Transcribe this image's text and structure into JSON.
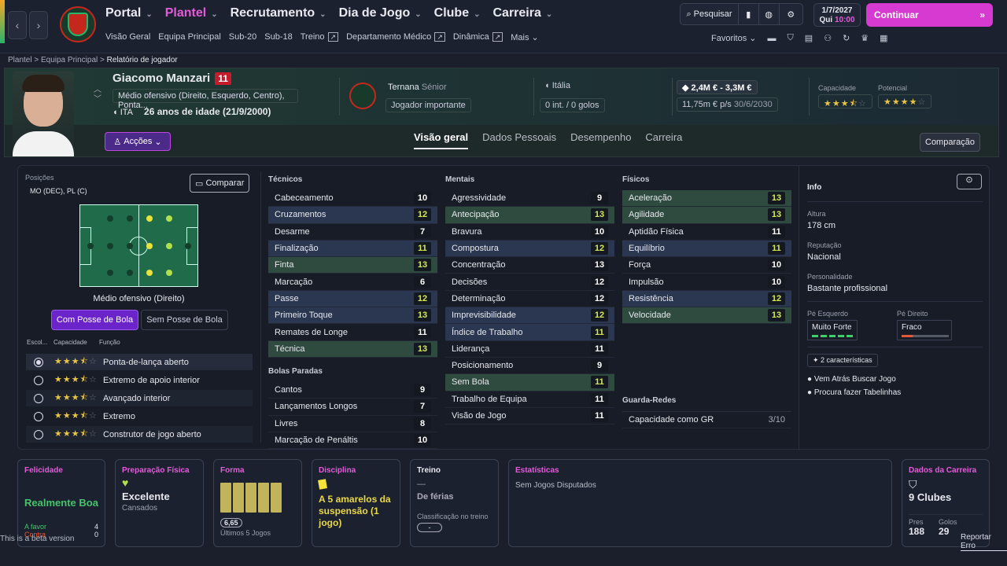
{
  "nav": {
    "main": [
      {
        "label": "Portal"
      },
      {
        "label": "Plantel",
        "selected": true
      },
      {
        "label": "Recrutamento"
      },
      {
        "label": "Dia de Jogo"
      },
      {
        "label": "Clube"
      },
      {
        "label": "Carreira"
      }
    ],
    "sub": [
      "Visão Geral",
      "Equipa Principal",
      "Sub-20",
      "Sub-18",
      "Treino",
      "Departamento Médico",
      "Dinâmica",
      "Mais"
    ],
    "search": "Pesquisar",
    "date": "1/7/2027",
    "day": "Qui",
    "time": "10:00",
    "continue": "Continuar",
    "favorites": "Favoritos"
  },
  "breadcrumb": [
    "Plantel",
    "Equipa Principal",
    "Relatório de jogador"
  ],
  "player": {
    "name": "Giacomo Manzari",
    "number": "11",
    "positions": "Médio ofensivo (Direito, Esquerdo, Centro), Ponta...",
    "nation": "ITA",
    "age": "26 anos de idade (21/9/2000)",
    "club": "Ternana",
    "club_level": "Sénior",
    "role_status": "Jogador importante",
    "nat_team": "Itália",
    "caps": "0 int. / 0 golos",
    "value": "2,4M € - 3,3M €",
    "wage": "11,75m € p/s",
    "contract": "30/6/2030",
    "ability_label": "Capacidade",
    "potential_label": "Potencial",
    "ability": 3.5,
    "potential": 4,
    "actions": "Acções"
  },
  "tabs": [
    "Visão geral",
    "Dados Pessoais",
    "Desempenho",
    "Carreira"
  ],
  "compare_btn": "Comparação",
  "left": {
    "positions_label": "Posições",
    "positions": "MO (DEC), PL (C)",
    "compare": "Comparar",
    "pitch_caption": "Médio ofensivo (Direito)",
    "in_possession": "Com Posse de Bola",
    "out_possession": "Sem Posse de Bola",
    "col_headers": [
      "Escol...",
      "Capacidade",
      "Função"
    ],
    "roles": [
      {
        "name": "Ponta-de-lança aberto",
        "sel": true
      },
      {
        "name": "Extremo de apoio interior"
      },
      {
        "name": "Avançado interior"
      },
      {
        "name": "Extremo"
      },
      {
        "name": "Construtor de jogo aberto"
      }
    ]
  },
  "technical": {
    "title": "Técnicos",
    "items": [
      [
        "Cabeceamento",
        "10",
        ""
      ],
      [
        "Cruzamentos",
        "12",
        "hl"
      ],
      [
        "Desarme",
        "7",
        ""
      ],
      [
        "Finalização",
        "11",
        "hl"
      ],
      [
        "Finta",
        "13",
        "gr"
      ],
      [
        "Marcação",
        "6",
        ""
      ],
      [
        "Passe",
        "12",
        "hl"
      ],
      [
        "Primeiro Toque",
        "13",
        "hl"
      ],
      [
        "Remates de Longe",
        "11",
        ""
      ],
      [
        "Técnica",
        "13",
        "gr"
      ]
    ]
  },
  "setpieces": {
    "title": "Bolas Paradas",
    "items": [
      [
        "Cantos",
        "9",
        ""
      ],
      [
        "Lançamentos Longos",
        "7",
        ""
      ],
      [
        "Livres",
        "8",
        ""
      ],
      [
        "Marcação de Penáltis",
        "10",
        ""
      ]
    ]
  },
  "mental": {
    "title": "Mentais",
    "items": [
      [
        "Agressividade",
        "9",
        ""
      ],
      [
        "Antecipação",
        "13",
        "gr"
      ],
      [
        "Bravura",
        "10",
        ""
      ],
      [
        "Compostura",
        "12",
        "hl"
      ],
      [
        "Concentração",
        "13",
        ""
      ],
      [
        "Decisões",
        "12",
        ""
      ],
      [
        "Determinação",
        "12",
        ""
      ],
      [
        "Imprevisibilidade",
        "12",
        "hl"
      ],
      [
        "Índice de Trabalho",
        "11",
        "hl"
      ],
      [
        "Liderança",
        "11",
        ""
      ],
      [
        "Posicionamento",
        "9",
        ""
      ],
      [
        "Sem Bola",
        "11",
        "gr"
      ],
      [
        "Trabalho de Equipa",
        "11",
        ""
      ],
      [
        "Visão de Jogo",
        "11",
        ""
      ]
    ]
  },
  "physical": {
    "title": "Físicos",
    "items": [
      [
        "Aceleração",
        "13",
        "gr"
      ],
      [
        "Agilidade",
        "13",
        "gr"
      ],
      [
        "Aptidão Física",
        "11",
        ""
      ],
      [
        "Equilíbrio",
        "11",
        "hl"
      ],
      [
        "Força",
        "10",
        ""
      ],
      [
        "Impulsão",
        "10",
        ""
      ],
      [
        "Resistência",
        "12",
        "hl"
      ],
      [
        "Velocidade",
        "13",
        "gr"
      ]
    ]
  },
  "gk": {
    "title": "Guarda-Redes",
    "label": "Capacidade como GR",
    "value": "3/10"
  },
  "info": {
    "title": "Info",
    "height_label": "Altura",
    "height": "178 cm",
    "rep_label": "Reputação",
    "rep": "Nacional",
    "pers_label": "Personalidade",
    "pers": "Bastante profissional",
    "left_foot_label": "Pé Esquerdo",
    "left_foot": "Muito Forte",
    "right_foot_label": "Pé Direito",
    "right_foot": "Fraco",
    "traits_count": "2 características",
    "traits": [
      "Vem Atrás Buscar Jogo",
      "Procura fazer Tabelinhas"
    ]
  },
  "cards": {
    "happiness": {
      "title": "Felicidade",
      "value": "Realmente Boa",
      "for_label": "A favor",
      "for": "4",
      "against_label": "Contra",
      "against": "0"
    },
    "fitness": {
      "title": "Preparação Física",
      "value": "Excelente",
      "sub": "Cansados"
    },
    "form": {
      "title": "Forma",
      "rating": "6,65",
      "sub": "Últimos 5 Jogos"
    },
    "discipline": {
      "title": "Disciplina",
      "value": "A 5 amarelos da suspensão (1 jogo)"
    },
    "training": {
      "title": "Treino",
      "dash": "—",
      "value": "De férias",
      "sub": "Classificação no treino",
      "badge": "-"
    },
    "stats": {
      "title": "Estatísticas",
      "value": "Sem Jogos Disputados"
    },
    "career": {
      "title": "Dados da Carreira",
      "value": "9 Clubes",
      "apps_label": "Pres",
      "apps": "188",
      "goals_label": "Golos",
      "goals": "29"
    }
  },
  "footer": {
    "beta": "This is a beta version",
    "report": "Reportar Erro"
  }
}
